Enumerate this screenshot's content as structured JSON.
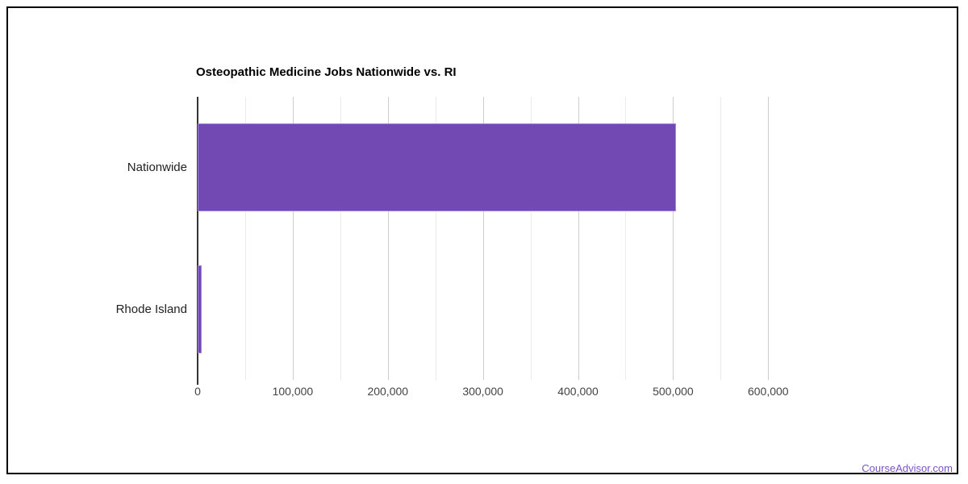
{
  "chart_data": {
    "type": "bar",
    "orientation": "horizontal",
    "title": "Osteopathic Medicine Jobs Nationwide vs. RI",
    "categories": [
      "Nationwide",
      "Rhode Island"
    ],
    "values": [
      503000,
      4000
    ],
    "xlabel": "",
    "ylabel": "",
    "xlim": [
      0,
      632000
    ],
    "x_ticks": [
      0,
      100000,
      200000,
      300000,
      400000,
      500000,
      600000
    ],
    "x_tick_labels": [
      "0",
      "100,000",
      "200,000",
      "300,000",
      "400,000",
      "500,000",
      "600,000"
    ],
    "minor_tick_step": 50000,
    "grid": "on",
    "legend": "none",
    "bar_color": "#7248b2",
    "bar_border_color": "#a287d4"
  },
  "colors": {
    "major_gridline": "#cccccc",
    "minor_gridline": "#ebebeb",
    "axis_line": "#333333",
    "tick_label": "#444444",
    "category_label": "#222222",
    "title": "#000000",
    "frame_border": "#000000",
    "link": "#7a52c9"
  },
  "footer": {
    "link_text": "CourseAdvisor.com"
  }
}
